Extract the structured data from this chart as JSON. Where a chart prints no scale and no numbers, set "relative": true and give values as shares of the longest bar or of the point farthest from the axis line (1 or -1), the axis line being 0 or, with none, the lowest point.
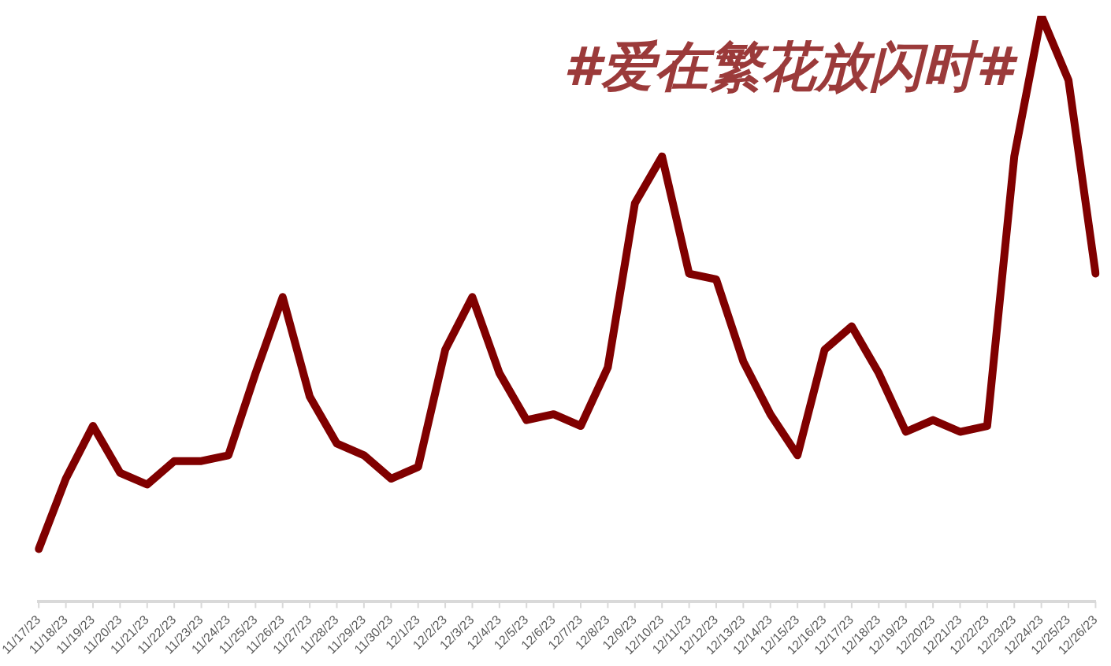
{
  "chart_data": {
    "type": "line",
    "title": "#爱在繁花放闪时#",
    "relative": true,
    "categories": [
      "11/17/23",
      "11/18/23",
      "11/19/23",
      "11/20/23",
      "11/21/23",
      "11/22/23",
      "11/23/23",
      "11/24/23",
      "11/25/23",
      "11/26/23",
      "11/27/23",
      "11/28/23",
      "11/29/23",
      "11/30/23",
      "12/1/23",
      "12/2/23",
      "12/3/23",
      "12/4/23",
      "12/5/23",
      "12/6/23",
      "12/7/23",
      "12/8/23",
      "12/9/23",
      "12/10/23",
      "12/11/23",
      "12/12/23",
      "12/13/23",
      "12/14/23",
      "12/15/23",
      "12/16/23",
      "12/17/23",
      "12/18/23",
      "12/19/23",
      "12/20/23",
      "12/21/23",
      "12/22/23",
      "12/23/23",
      "12/24/23",
      "12/25/23",
      "12/26/23"
    ],
    "series": [
      {
        "color": "#800000",
        "values": [
          0.09,
          0.21,
          0.3,
          0.22,
          0.2,
          0.24,
          0.24,
          0.25,
          0.39,
          0.52,
          0.35,
          0.27,
          0.25,
          0.21,
          0.23,
          0.43,
          0.52,
          0.39,
          0.31,
          0.32,
          0.3,
          0.4,
          0.68,
          0.76,
          0.56,
          0.55,
          0.41,
          0.32,
          0.25,
          0.43,
          0.47,
          0.39,
          0.29,
          0.31,
          0.29,
          0.3,
          0.76,
          1,
          0.89,
          0.56
        ]
      }
    ],
    "grid": false,
    "legend": false,
    "marker": "none",
    "line_style": "solid"
  }
}
